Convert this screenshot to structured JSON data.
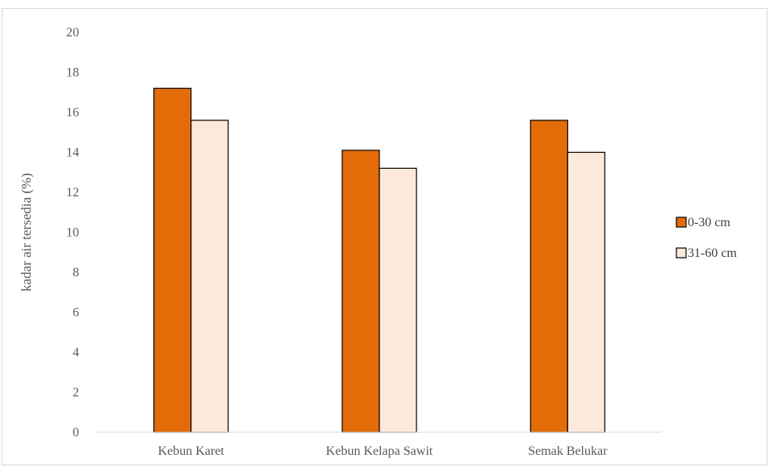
{
  "chart_data": {
    "type": "bar",
    "title": "",
    "xlabel": "",
    "ylabel": "kadar air tersedia (%)",
    "ylim": [
      0,
      20
    ],
    "yticks": [
      0,
      2,
      4,
      6,
      8,
      10,
      12,
      14,
      16,
      18,
      20
    ],
    "grid": false,
    "legend_position": "right",
    "categories": [
      "Kebun Karet",
      "Kebun Kelapa Sawit",
      "Semak Belukar"
    ],
    "series": [
      {
        "name": "0-30 cm",
        "values": [
          17.2,
          14.1,
          15.6
        ],
        "color": "#e36c09"
      },
      {
        "name": "31-60 cm",
        "values": [
          15.6,
          13.2,
          14.0
        ],
        "color": "#fde9d9"
      }
    ]
  }
}
